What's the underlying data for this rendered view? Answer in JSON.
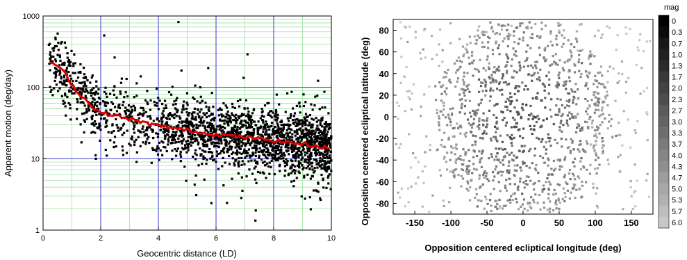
{
  "chart_data": [
    {
      "type": "scatter",
      "xlabel": "Geocentric distance (LD)",
      "ylabel": "Apparent motion (deg/day)",
      "xlim": [
        0,
        10
      ],
      "ylim": [
        1,
        1000
      ],
      "yscale": "log",
      "xticks": [
        "0",
        "2",
        "4",
        "6",
        "8",
        "10"
      ],
      "yticks": [
        "1",
        "10",
        "100",
        "1000"
      ],
      "grid": true,
      "colors": {
        "points": "#000000",
        "trend": "#dd0000",
        "major_grid": "#3a3ad0",
        "minor_grid": "#9ee09e"
      },
      "series": [
        {
          "kind": "scatter",
          "x_range": [
            0.2,
            10
          ],
          "note_values": "dense cloud of black square markers; median trend below"
        },
        {
          "kind": "line",
          "x": [
            0.25,
            0.4,
            0.6,
            0.8,
            1.0,
            1.2,
            1.5,
            1.8,
            2.0,
            2.5,
            3.0,
            3.5,
            4.0,
            4.5,
            5.0,
            5.5,
            6.0,
            6.5,
            7.0,
            7.5,
            8.0,
            8.5,
            9.0,
            9.5,
            10.0
          ],
          "y": [
            220,
            215,
            180,
            150,
            110,
            85,
            65,
            50,
            44,
            40,
            36,
            32,
            29,
            27,
            25,
            23,
            22,
            21,
            20,
            19,
            18,
            17,
            16,
            15,
            14
          ]
        }
      ]
    },
    {
      "type": "scatter",
      "xlabel": "Opposition centered ecliptical longitude (deg)",
      "ylabel": "Opposition centered ecliptical latitude (deg)",
      "xlim": [
        -180,
        180
      ],
      "ylim": [
        -90,
        90
      ],
      "xticks": [
        "-150",
        "-100",
        "-50",
        "0",
        "50",
        "100",
        "150"
      ],
      "yticks": [
        "-80",
        "-60",
        "-40",
        "-20",
        "0",
        "20",
        "40",
        "60",
        "80"
      ],
      "grid": false,
      "colorbar": {
        "title": "mag",
        "levels": [
          "0",
          "0.3",
          "0.7",
          "1.0",
          "1.3",
          "1.7",
          "2.0",
          "2.3",
          "2.7",
          "3.0",
          "3.3",
          "3.7",
          "4.0",
          "4.3",
          "4.7",
          "5.0",
          "5.3",
          "5.7",
          "6.0"
        ],
        "color_dark": "#000000",
        "color_light": "#c8c8c8"
      }
    }
  ]
}
